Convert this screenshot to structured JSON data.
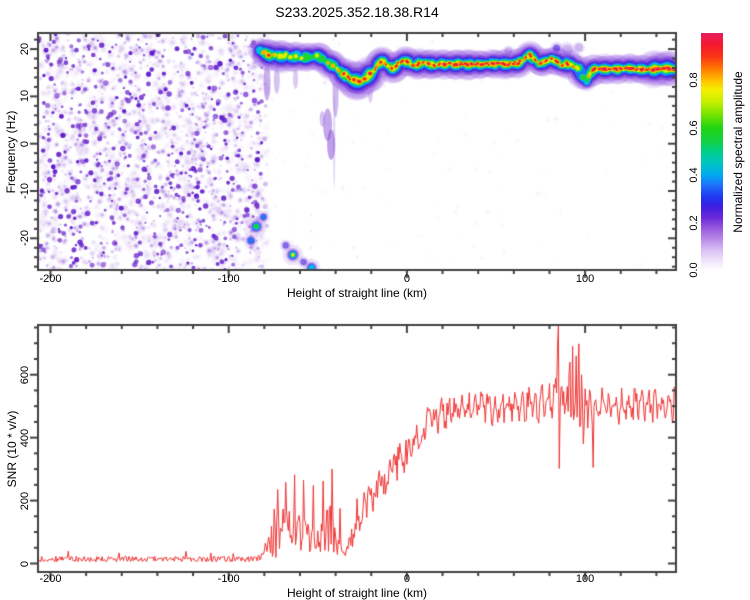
{
  "title": "S233.2025.352.18.38.R14",
  "chart_data": [
    {
      "type": "heatmap",
      "name": "spectrogram",
      "xlabel": "Height of straight line (km)",
      "ylabel": "Frequency (Hz)",
      "xlim": [
        -207,
        151
      ],
      "ylim": [
        -26.7,
        23.4
      ],
      "xticks": [
        -200,
        -100,
        0,
        100
      ],
      "x_minor_step": 20,
      "yticks": [
        -20,
        -10,
        0,
        10,
        20
      ],
      "y_minor_step": 2,
      "noise_region": {
        "x_end_km": -80.5,
        "description": "dense speckled purple noise blobs on white background",
        "palette_light": [
          "#eee6f9",
          "#dfcaf3",
          "#c9abec"
        ],
        "palette_mid": [
          "#c9abec",
          "#a87ce2",
          "#8c52d8"
        ],
        "palette_dark": [
          "#7c3ad4",
          "#6420cc",
          "#5a14c8"
        ],
        "accent_blue": "#4a2ae0"
      },
      "trace": [
        [
          -82,
          19.6,
          0.62
        ],
        [
          -79.5,
          19.2,
          0.82
        ],
        [
          -77,
          18.6,
          0.72
        ],
        [
          -74,
          19.0,
          0.66
        ],
        [
          -71,
          18.3,
          0.6
        ],
        [
          -68,
          18.8,
          0.66
        ],
        [
          -65,
          18.1,
          0.6
        ],
        [
          -62,
          18.6,
          0.62
        ],
        [
          -59,
          17.9,
          0.64
        ],
        [
          -56,
          18.4,
          0.6
        ],
        [
          -53,
          18.1,
          0.58
        ],
        [
          -50,
          18.5,
          0.64
        ],
        [
          -47,
          17.8,
          0.62
        ],
        [
          -44,
          17.2,
          0.68
        ],
        [
          -41,
          16.4,
          0.7
        ],
        [
          -38,
          15.4,
          0.74
        ],
        [
          -35,
          14.5,
          0.78
        ],
        [
          -32,
          13.8,
          0.82
        ],
        [
          -29,
          13.2,
          0.86
        ],
        [
          -26,
          13.1,
          0.82
        ],
        [
          -23,
          13.8,
          0.84
        ],
        [
          -20,
          14.9,
          0.86
        ],
        [
          -17,
          16.3,
          0.82
        ],
        [
          -14,
          17.4,
          0.84
        ],
        [
          -11,
          16.7,
          0.78
        ],
        [
          -8,
          16.0,
          0.82
        ],
        [
          -5,
          16.9,
          0.86
        ],
        [
          -2,
          17.6,
          0.84
        ],
        [
          1,
          17.1,
          0.82
        ],
        [
          4,
          16.5,
          0.86
        ],
        [
          7,
          16.9,
          0.84
        ],
        [
          10,
          17.3,
          0.86
        ],
        [
          13,
          16.8,
          0.84
        ],
        [
          16,
          16.5,
          0.86
        ],
        [
          19,
          16.8,
          0.9
        ],
        [
          22,
          16.9,
          0.94
        ],
        [
          25,
          16.8,
          0.98
        ],
        [
          30,
          16.9,
          0.99
        ],
        [
          35,
          16.8,
          0.98
        ],
        [
          40,
          16.9,
          0.99
        ],
        [
          45,
          16.8,
          0.98
        ],
        [
          50,
          16.9,
          0.99
        ],
        [
          55,
          16.8,
          0.98
        ],
        [
          60,
          16.9,
          0.96
        ],
        [
          63,
          17.2,
          0.88
        ],
        [
          66,
          17.9,
          0.82
        ],
        [
          69,
          18.7,
          0.8
        ],
        [
          71,
          18.0,
          0.82
        ],
        [
          73,
          17.2,
          0.84
        ],
        [
          75,
          16.8,
          0.86
        ],
        [
          78,
          17.3,
          0.86
        ],
        [
          81,
          17.9,
          0.86
        ],
        [
          84,
          17.4,
          0.9
        ],
        [
          87,
          16.6,
          0.86
        ],
        [
          90,
          16.9,
          0.86
        ],
        [
          93,
          16.5,
          0.8
        ],
        [
          95,
          16.2,
          0.72
        ],
        [
          97,
          15.6,
          0.62
        ],
        [
          99,
          14.0,
          0.52
        ],
        [
          101,
          13.2,
          0.56
        ],
        [
          103,
          14.8,
          0.72
        ],
        [
          105,
          15.7,
          0.92
        ],
        [
          108,
          15.8,
          1.0
        ],
        [
          115,
          15.7,
          1.0
        ],
        [
          125,
          15.8,
          1.0
        ],
        [
          135,
          15.7,
          1.0
        ],
        [
          145,
          15.8,
          1.0
        ],
        [
          151,
          15.8,
          1.0
        ]
      ],
      "mirror_blobs": [
        [
          -84.5,
          -17.5,
          7,
          0.7
        ],
        [
          -80.5,
          -15.5,
          4.5,
          0.45
        ],
        [
          -87.5,
          -20.5,
          5,
          0.5
        ],
        [
          -64,
          -23.5,
          7,
          0.75
        ],
        [
          -68,
          -21.5,
          4,
          0.4
        ],
        [
          -53.5,
          -26.2,
          6,
          0.52
        ],
        [
          -58,
          -25,
          4,
          0.35
        ],
        [
          84,
          20.2,
          4.5,
          0.3
        ],
        [
          90,
          19.8,
          5.5,
          0.28
        ],
        [
          96.5,
          20.3,
          4,
          0.25
        ],
        [
          57,
          19.5,
          4,
          0.25
        ]
      ],
      "smears": [
        [
          -78.5,
          16.5,
          9.5,
          3.5,
          0.45
        ],
        [
          -73,
          16,
          11,
          3,
          0.35
        ],
        [
          -62.5,
          15.5,
          12,
          2.5,
          0.3
        ],
        [
          -47.5,
          6.5,
          4.0,
          2.5,
          0.35
        ],
        [
          -44.5,
          7.0,
          1.0,
          4.5,
          0.5
        ],
        [
          -42.5,
          2.5,
          -3.0,
          4.0,
          0.55
        ],
        [
          -40.8,
          10.0,
          -9.0,
          1.2,
          0.22
        ],
        [
          -40,
          16,
          6,
          3,
          0.4
        ],
        [
          -20.5,
          12.5,
          9.0,
          2.5,
          0.28
        ]
      ],
      "faint_dots": [
        [
          -54,
          -15
        ],
        [
          -54,
          -18.5
        ],
        [
          -54,
          -22
        ],
        [
          -54,
          -24.5
        ],
        [
          -30,
          -22
        ],
        [
          -28,
          -24
        ],
        [
          -41,
          22
        ],
        [
          -38,
          21
        ],
        [
          -36,
          17
        ]
      ],
      "colorbar": {
        "label": "Normalized spectral amplitude",
        "ticks": [
          "0.0",
          "0.2",
          "0.4",
          "0.6",
          "0.8"
        ],
        "tick_values": [
          0,
          0.2,
          0.4,
          0.6,
          0.8
        ],
        "range": [
          0,
          1
        ],
        "stops": [
          [
            0.0,
            "#ffffff"
          ],
          [
            0.03,
            "#f2eafb"
          ],
          [
            0.08,
            "#dcc4f4"
          ],
          [
            0.13,
            "#b98ae9"
          ],
          [
            0.18,
            "#9356dd"
          ],
          [
            0.22,
            "#6c2ad8"
          ],
          [
            0.27,
            "#3b1fe0"
          ],
          [
            0.31,
            "#1f3af2"
          ],
          [
            0.36,
            "#1e74fa"
          ],
          [
            0.4,
            "#00a8f0"
          ],
          [
            0.45,
            "#00c4c4"
          ],
          [
            0.5,
            "#00cf8a"
          ],
          [
            0.54,
            "#10d048"
          ],
          [
            0.6,
            "#22d410"
          ],
          [
            0.66,
            "#7ce400"
          ],
          [
            0.71,
            "#c8ee00"
          ],
          [
            0.76,
            "#f4f000"
          ],
          [
            0.8,
            "#ffc000"
          ],
          [
            0.85,
            "#ff7800"
          ],
          [
            0.9,
            "#fb3514"
          ],
          [
            0.95,
            "#f41830"
          ],
          [
            1.0,
            "#e61e5e"
          ]
        ]
      }
    },
    {
      "type": "line",
      "name": "snr",
      "xlabel": "Height of straight line (km)",
      "ylabel": "SNR (10 * v/v)",
      "xlim": [
        -207,
        151
      ],
      "ylim": [
        -27,
        758
      ],
      "xticks": [
        -200,
        -100,
        0,
        100
      ],
      "x_minor_step": 20,
      "yticks": [
        0,
        200,
        400,
        600
      ],
      "y_minor_step": 50,
      "line_color": "#ee3636",
      "baseline": [
        [
          -207,
          14,
          18
        ],
        [
          -90,
          14,
          18
        ],
        [
          -84,
          16,
          20
        ],
        [
          -80,
          30,
          45
        ],
        [
          -77,
          70,
          120
        ],
        [
          -74,
          105,
          170
        ],
        [
          -71,
          90,
          150
        ],
        [
          -68,
          115,
          185
        ],
        [
          -65,
          90,
          150
        ],
        [
          -62,
          105,
          170
        ],
        [
          -59,
          80,
          130
        ],
        [
          -56,
          95,
          150
        ],
        [
          -53,
          70,
          115
        ],
        [
          -50,
          78,
          125
        ],
        [
          -47,
          85,
          135
        ],
        [
          -44,
          110,
          150
        ],
        [
          -42,
          120,
          160
        ],
        [
          -40,
          70,
          100
        ],
        [
          -38,
          45,
          60
        ],
        [
          -36,
          35,
          45
        ],
        [
          -34,
          40,
          55
        ],
        [
          -32,
          60,
          70
        ],
        [
          -30,
          120,
          115
        ],
        [
          -28,
          175,
          120
        ],
        [
          -26,
          155,
          110
        ],
        [
          -24,
          205,
          120
        ],
        [
          -22,
          185,
          110
        ],
        [
          -20,
          225,
          120
        ],
        [
          -18,
          210,
          100
        ],
        [
          -16,
          245,
          110
        ],
        [
          -14,
          280,
          110
        ],
        [
          -12,
          260,
          100
        ],
        [
          -10,
          295,
          110
        ],
        [
          -8,
          325,
          100
        ],
        [
          -6,
          305,
          100
        ],
        [
          -4,
          335,
          100
        ],
        [
          -2,
          325,
          95
        ],
        [
          0,
          350,
          100
        ],
        [
          3,
          380,
          95
        ],
        [
          6,
          400,
          90
        ],
        [
          9,
          425,
          85
        ],
        [
          12,
          445,
          80
        ],
        [
          15,
          458,
          75
        ],
        [
          20,
          478,
          70
        ],
        [
          30,
          490,
          70
        ],
        [
          40,
          498,
          70
        ],
        [
          50,
          494,
          70
        ],
        [
          60,
          500,
          72
        ],
        [
          70,
          504,
          76
        ],
        [
          78,
          504,
          85
        ],
        [
          82,
          515,
          100
        ],
        [
          88,
          508,
          115
        ],
        [
          92,
          520,
          150
        ],
        [
          96,
          505,
          160
        ],
        [
          100,
          490,
          100
        ],
        [
          104,
          498,
          80
        ],
        [
          110,
          505,
          70
        ],
        [
          120,
          500,
          70
        ],
        [
          130,
          505,
          70
        ],
        [
          140,
          500,
          70
        ],
        [
          151,
          505,
          75
        ]
      ],
      "spikes": [
        [
          -72.5,
          235
        ],
        [
          -68,
          258
        ],
        [
          -63,
          282
        ],
        [
          -58,
          265
        ],
        [
          -52.5,
          248
        ],
        [
          -47,
          262
        ],
        [
          -42,
          300
        ],
        [
          -37.5,
          175
        ],
        [
          -34.5,
          25
        ],
        [
          84.6,
          690
        ],
        [
          85.0,
          758
        ],
        [
          85.5,
          302
        ],
        [
          86.3,
          560
        ],
        [
          91.4,
          640
        ],
        [
          92.2,
          465
        ],
        [
          93.1,
          690
        ],
        [
          93.9,
          475
        ],
        [
          94.8,
          660
        ],
        [
          95.6,
          465
        ],
        [
          96.5,
          698
        ],
        [
          97.3,
          440
        ],
        [
          98.1,
          600
        ],
        [
          99.0,
          380
        ],
        [
          100.2,
          555
        ],
        [
          101.6,
          430
        ],
        [
          103.1,
          540
        ],
        [
          104.4,
          305
        ],
        [
          105.3,
          515
        ]
      ]
    }
  ]
}
